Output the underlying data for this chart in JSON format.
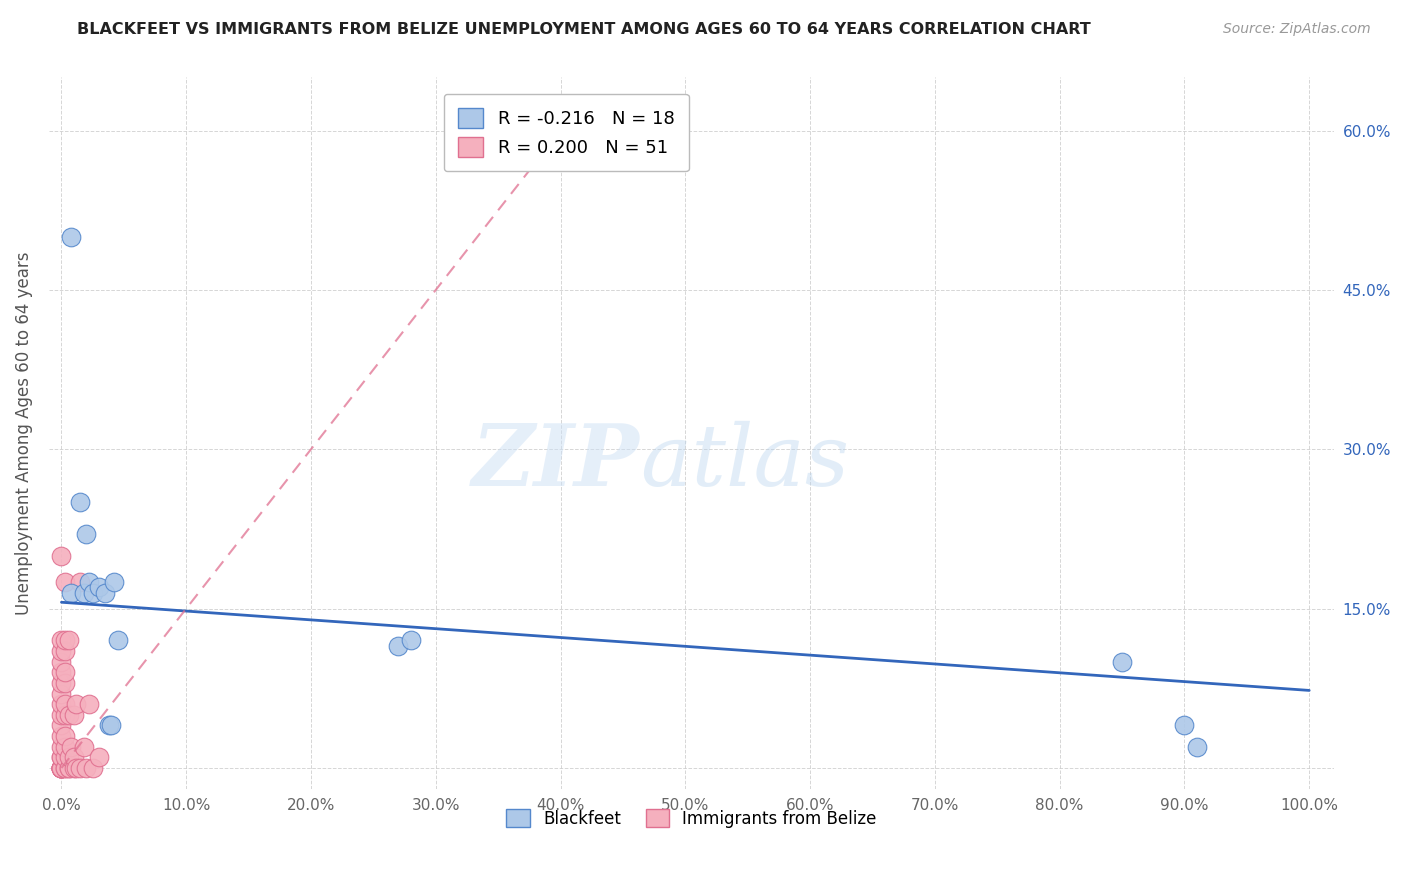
{
  "title": "BLACKFEET VS IMMIGRANTS FROM BELIZE UNEMPLOYMENT AMONG AGES 60 TO 64 YEARS CORRELATION CHART",
  "source": "Source: ZipAtlas.com",
  "ylabel": "Unemployment Among Ages 60 to 64 years",
  "xlim": [
    -0.01,
    1.02
  ],
  "ylim": [
    -0.02,
    0.65
  ],
  "xticks": [
    0.0,
    0.1,
    0.2,
    0.3,
    0.4,
    0.5,
    0.6,
    0.7,
    0.8,
    0.9,
    1.0
  ],
  "xticklabels": [
    "0.0%",
    "10.0%",
    "20.0%",
    "30.0%",
    "40.0%",
    "50.0%",
    "60.0%",
    "70.0%",
    "80.0%",
    "90.0%",
    "100.0%"
  ],
  "yticks": [
    0.0,
    0.15,
    0.3,
    0.45,
    0.6
  ],
  "yticklabels": [
    "",
    "15.0%",
    "30.0%",
    "45.0%",
    "60.0%"
  ],
  "blackfeet_R": "-0.216",
  "blackfeet_N": "18",
  "belize_R": "0.200",
  "belize_N": "51",
  "blackfeet_color": "#adc8e8",
  "blackfeet_edge_color": "#5588cc",
  "blackfeet_line_color": "#3366bb",
  "belize_color": "#f5b0be",
  "belize_edge_color": "#e07090",
  "belize_line_color": "#e07090",
  "blackfeet_x": [
    0.008,
    0.008,
    0.015,
    0.018,
    0.02,
    0.022,
    0.025,
    0.03,
    0.035,
    0.038,
    0.04,
    0.042,
    0.045,
    0.27,
    0.28,
    0.85,
    0.9,
    0.91
  ],
  "blackfeet_y": [
    0.5,
    0.165,
    0.25,
    0.165,
    0.22,
    0.175,
    0.165,
    0.17,
    0.165,
    0.04,
    0.04,
    0.175,
    0.12,
    0.115,
    0.12,
    0.1,
    0.04,
    0.02
  ],
  "belize_x": [
    0.0,
    0.0,
    0.0,
    0.0,
    0.0,
    0.0,
    0.0,
    0.0,
    0.0,
    0.0,
    0.0,
    0.0,
    0.0,
    0.0,
    0.0,
    0.0,
    0.0,
    0.0,
    0.0,
    0.0,
    0.0,
    0.003,
    0.003,
    0.003,
    0.003,
    0.003,
    0.003,
    0.003,
    0.003,
    0.003,
    0.003,
    0.003,
    0.003,
    0.006,
    0.006,
    0.006,
    0.006,
    0.006,
    0.008,
    0.01,
    0.01,
    0.01,
    0.012,
    0.012,
    0.015,
    0.015,
    0.018,
    0.02,
    0.022,
    0.025,
    0.03
  ],
  "belize_y": [
    0.0,
    0.0,
    0.0,
    0.0,
    0.0,
    0.0,
    0.0,
    0.01,
    0.01,
    0.02,
    0.03,
    0.04,
    0.05,
    0.06,
    0.07,
    0.08,
    0.09,
    0.1,
    0.11,
    0.12,
    0.2,
    0.0,
    0.0,
    0.01,
    0.02,
    0.03,
    0.05,
    0.06,
    0.08,
    0.09,
    0.11,
    0.12,
    0.175,
    0.0,
    0.0,
    0.01,
    0.05,
    0.12,
    0.02,
    0.0,
    0.01,
    0.05,
    0.0,
    0.06,
    0.0,
    0.175,
    0.02,
    0.0,
    0.06,
    0.0,
    0.01
  ],
  "bf_line_x0": 0.0,
  "bf_line_x1": 1.0,
  "bf_line_y0": 0.156,
  "bf_line_y1": 0.073,
  "bz_line_x0": 0.0,
  "bz_line_x1": 0.42,
  "bz_line_y0": 0.0,
  "bz_line_y1": 0.63
}
